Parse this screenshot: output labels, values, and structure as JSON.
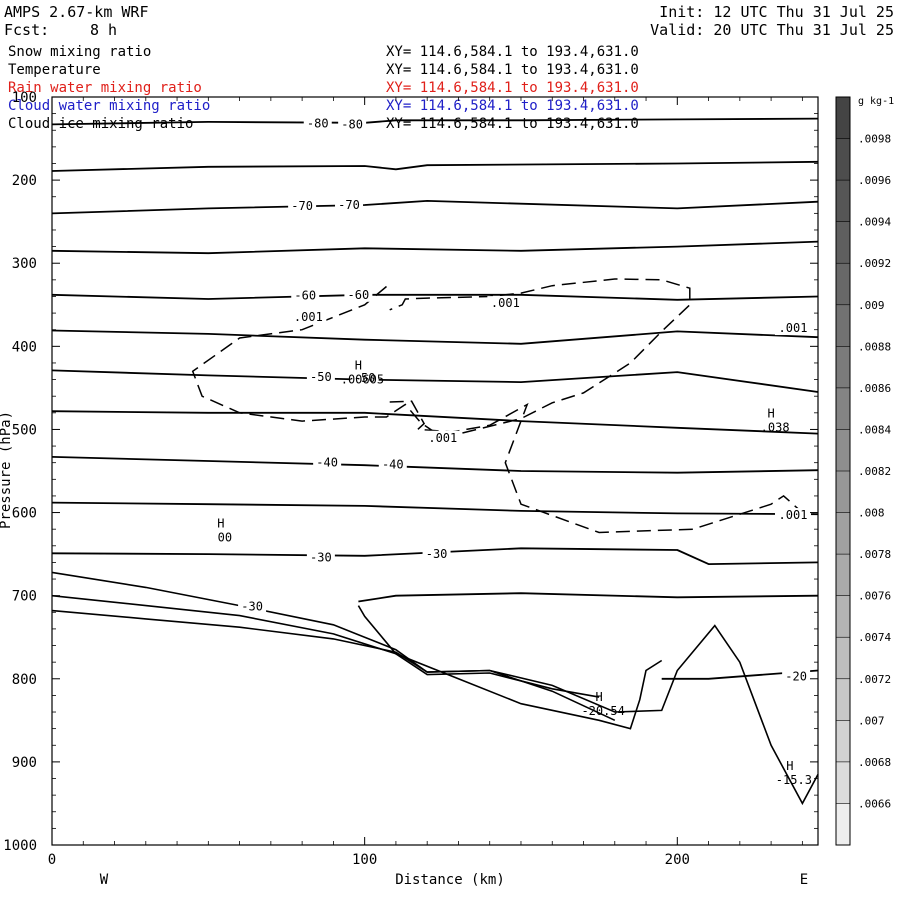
{
  "header": {
    "model": "AMPS 2.67-km WRF",
    "fcst_label": "Fcst:",
    "fcst_value": "8 h",
    "init": "Init: 12 UTC Thu 31 Jul 25",
    "valid": "Valid: 20 UTC Thu 31 Jul 25"
  },
  "legend": {
    "fields": [
      {
        "name": "Snow mixing ratio",
        "xy": "XY= 114.6,584.1 to 193.4,631.0",
        "color": "#000000"
      },
      {
        "name": "Temperature",
        "xy": "XY= 114.6,584.1 to 193.4,631.0",
        "color": "#000000"
      },
      {
        "name": "Rain water mixing ratio",
        "xy": "XY= 114.6,584.1 to 193.4,631.0",
        "color": "#e0201a"
      },
      {
        "name": "Cloud water mixing ratio",
        "xy": "XY= 114.6,584.1 to 193.4,631.0",
        "color": "#2020c8"
      },
      {
        "name": "Cloud ice mixing ratio",
        "xy": "XY= 114.6,584.1 to 193.4,631.0",
        "color": "#000000"
      }
    ]
  },
  "colorbar": {
    "unit": "g kg-1",
    "ticks": [
      ".0098",
      ".0096",
      ".0094",
      ".0092",
      ".009",
      ".0088",
      ".0086",
      ".0084",
      ".0082",
      ".008",
      ".0078",
      ".0076",
      ".0074",
      ".0072",
      ".007",
      ".0068",
      ".0066"
    ],
    "colors": [
      "#444444",
      "#4d4d4d",
      "#565656",
      "#5f5f5f",
      "#686868",
      "#727272",
      "#7b7b7b",
      "#848484",
      "#8e8e8e",
      "#979797",
      "#a1a1a1",
      "#aaaaaa",
      "#b4b4b4",
      "#bebebe",
      "#c8c8c8",
      "#d2d2d2",
      "#dcdcdc",
      "#eeeeee"
    ]
  },
  "chart_data": {
    "type": "line",
    "xlabel": "Distance (km)",
    "ylabel": "Pressure (hPa)",
    "xlim": [
      0,
      245
    ],
    "ylim": [
      1000,
      100
    ],
    "x_ticks": [
      0,
      100,
      200
    ],
    "y_ticks": [
      100,
      200,
      300,
      400,
      500,
      600,
      700,
      800,
      900,
      1000
    ],
    "x_tick_labels": [
      "0",
      "100",
      "200"
    ],
    "y_tick_labels": [
      "100",
      "200",
      "300",
      "400",
      "500",
      "600",
      "700",
      "800",
      "900",
      "1000"
    ],
    "west_label": "W",
    "east_label": "E",
    "grid": false,
    "temperature_isotherms": [
      {
        "x": [
          0,
          50,
          100,
          110,
          150,
          200,
          245
        ],
        "y": [
          133,
          130,
          131,
          128,
          128,
          127,
          126
        ]
      },
      {
        "x": [
          0,
          50,
          100,
          110,
          120,
          200,
          245
        ],
        "y": [
          189,
          184,
          183,
          187,
          182,
          180,
          178
        ]
      },
      {
        "x": [
          0,
          50,
          100,
          120,
          200,
          245
        ],
        "y": [
          240,
          234,
          230,
          225,
          234,
          226
        ]
      },
      {
        "x": [
          0,
          50,
          100,
          150,
          200,
          245
        ],
        "y": [
          285,
          288,
          282,
          285,
          280,
          274
        ]
      },
      {
        "x": [
          0,
          50,
          100,
          150,
          200,
          245
        ],
        "y": [
          338,
          343,
          338,
          338,
          344,
          340
        ]
      },
      {
        "x": [
          0,
          50,
          100,
          150,
          200,
          245
        ],
        "y": [
          381,
          385,
          392,
          397,
          382,
          389
        ]
      },
      {
        "x": [
          0,
          50,
          100,
          150,
          200,
          245
        ],
        "y": [
          429,
          435,
          440,
          443,
          431,
          455
        ]
      },
      {
        "x": [
          0,
          50,
          100,
          150,
          200,
          245
        ],
        "y": [
          478,
          480,
          480,
          490,
          498,
          505
        ]
      },
      {
        "x": [
          0,
          50,
          100,
          150,
          200,
          245
        ],
        "y": [
          533,
          538,
          543,
          550,
          552,
          549
        ]
      },
      {
        "x": [
          0,
          50,
          100,
          150,
          200,
          245
        ],
        "y": [
          588,
          590,
          592,
          598,
          601,
          602
        ]
      },
      {
        "x": [
          0,
          50,
          100,
          150,
          200,
          210,
          245
        ],
        "y": [
          649,
          650,
          652,
          643,
          645,
          662,
          660
        ]
      },
      {
        "x": [
          98,
          110,
          150,
          200,
          245
        ],
        "y": [
          707,
          700,
          697,
          702,
          700
        ]
      },
      {
        "x": [
          195,
          210,
          245
        ],
        "y": [
          800,
          800,
          790
        ]
      }
    ],
    "isotherm_labels": [
      {
        "text": "-80",
        "x": 85,
        "y": 132
      },
      {
        "text": "-80",
        "x": 96,
        "y": 133
      },
      {
        "text": "-70",
        "x": 80,
        "y": 231
      },
      {
        "text": "-70",
        "x": 95,
        "y": 230
      },
      {
        "text": "-60",
        "x": 81,
        "y": 339
      },
      {
        "text": "-60",
        "x": 98,
        "y": 338
      },
      {
        "text": "-50",
        "x": 86,
        "y": 437
      },
      {
        "text": "-50",
        "x": 100,
        "y": 438
      },
      {
        "text": "-40",
        "x": 88,
        "y": 540
      },
      {
        "text": "-40",
        "x": 109,
        "y": 542
      },
      {
        "text": "-30",
        "x": 86,
        "y": 654
      },
      {
        "text": "-30",
        "x": 123,
        "y": 650
      },
      {
        "text": "-30",
        "x": 64,
        "y": 713
      },
      {
        "text": "-20",
        "x": 238,
        "y": 797
      }
    ],
    "terrain": [
      {
        "x": [
          0,
          30,
          60,
          90,
          110,
          120,
          140,
          160,
          180,
          195,
          200,
          212,
          220,
          230,
          240,
          245
        ],
        "y": [
          718,
          728,
          738,
          752,
          768,
          792,
          790,
          808,
          840,
          838,
          790,
          736,
          780,
          880,
          950,
          915
        ]
      },
      {
        "x": [
          0,
          30,
          60,
          90,
          110,
          120,
          140,
          160,
          175
        ],
        "y": [
          700,
          712,
          724,
          746,
          770,
          795,
          793,
          812,
          822
        ]
      },
      {
        "x": [
          0,
          30,
          60,
          90,
          110,
          120,
          140,
          160,
          180
        ],
        "y": [
          672,
          690,
          712,
          735,
          765,
          792,
          790,
          815,
          850
        ]
      },
      {
        "x": [
          98,
          100,
          110,
          130,
          150,
          175,
          185,
          188,
          190,
          195
        ],
        "y": [
          712,
          725,
          770,
          800,
          830,
          850,
          860,
          825,
          790,
          778
        ]
      }
    ],
    "cloud_ice_contour": [
      {
        "x": [
          107,
          100,
          80,
          60,
          45,
          48,
          60,
          80,
          100,
          107,
          113,
          118,
          125,
          150,
          160,
          170,
          185,
          195,
          204,
          204,
          195,
          180,
          160,
          150,
          140,
          120,
          113,
          112,
          108
        ],
        "y": [
          328,
          350,
          380,
          390,
          430,
          460,
          480,
          490,
          485,
          485,
          470,
          492,
          510,
          487,
          468,
          456,
          420,
          382,
          350,
          330,
          320,
          319,
          327,
          336,
          340,
          342,
          343,
          350,
          356
        ]
      },
      {
        "x": [
          108,
          115,
          119,
          117,
          128,
          140,
          152,
          145,
          150,
          175,
          205,
          230,
          234,
          240,
          244
        ],
        "y": [
          467,
          466,
          493,
          500,
          503,
          495,
          470,
          540,
          590,
          624,
          620,
          590,
          580,
          600,
          602
        ]
      }
    ],
    "contour_labels": [
      {
        "text": ".001",
        "x": 82,
        "y": 365
      },
      {
        "text": ".001",
        "x": 145,
        "y": 348
      },
      {
        "text": ".001",
        "x": 125,
        "y": 510
      },
      {
        "text": ".001",
        "x": 237,
        "y": 378
      },
      {
        "text": ".001",
        "x": 237,
        "y": 603
      }
    ],
    "extrema": [
      {
        "mark": "H",
        "value": ".00605",
        "x": 98,
        "y": 435
      },
      {
        "mark": "H",
        "value": ".038",
        "x": 230,
        "y": 493
      },
      {
        "mark": "H",
        "value": "00",
        "x": 54,
        "y": 625
      },
      {
        "mark": "H",
        "value": "-20.54",
        "x": 175,
        "y": 834
      },
      {
        "mark": "H",
        "value": "-15.3",
        "x": 236,
        "y": 917
      }
    ]
  }
}
